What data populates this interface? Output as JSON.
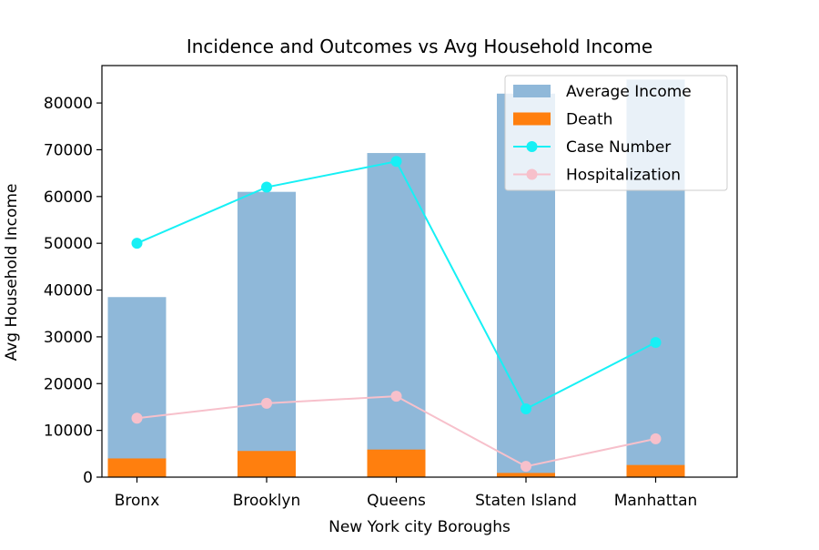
{
  "chart_data": {
    "type": "bar",
    "title": "Incidence and Outcomes vs Avg Household Income",
    "xlabel": "New York city Boroughs",
    "ylabel": "Avg Household Income",
    "categories": [
      "Bronx",
      "Brooklyn",
      "Queens",
      "Staten Island",
      "Manhattan"
    ],
    "ylim": [
      0,
      88000
    ],
    "yticks": [
      0,
      10000,
      20000,
      30000,
      40000,
      50000,
      60000,
      70000,
      80000
    ],
    "ytick_labels": [
      "0",
      "10000",
      "20000",
      "30000",
      "40000",
      "50000",
      "60000",
      "70000",
      "80000"
    ],
    "grid": false,
    "legend_position": "top-right",
    "series": [
      {
        "name": "Average Income",
        "kind": "bar",
        "color": "#8fb8d9",
        "values": [
          38500,
          61000,
          69300,
          82000,
          85000
        ]
      },
      {
        "name": "Death",
        "kind": "bar",
        "color": "#ff7f0e",
        "values": [
          4000,
          5600,
          5900,
          900,
          2600
        ]
      },
      {
        "name": "Case Number",
        "kind": "line",
        "color": "#17f0f5",
        "values": [
          50000,
          62000,
          67500,
          14600,
          28800
        ]
      },
      {
        "name": "Hospitalization",
        "kind": "line",
        "color": "#f7c0cb",
        "values": [
          12600,
          15800,
          17300,
          2300,
          8200
        ]
      }
    ]
  }
}
